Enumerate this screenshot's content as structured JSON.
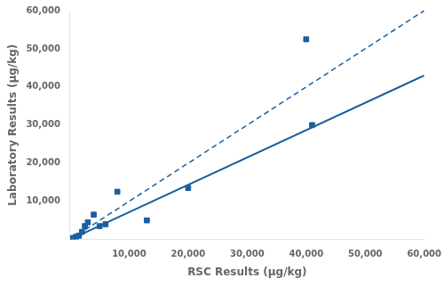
{
  "chart_data": {
    "type": "scatter",
    "xlabel": "RSC Results (μg/kg)",
    "ylabel": "Laboratory Results (μg/kg)",
    "series": [
      {
        "type": "scatter",
        "x": [
          500,
          1000,
          1500,
          2000,
          2500,
          3000,
          4000,
          5000,
          6000,
          8000,
          13000,
          20000,
          40000,
          41000
        ],
        "values": [
          400,
          700,
          1000,
          2000,
          3500,
          4500,
          6500,
          3500,
          4000,
          12500,
          5000,
          13500,
          52500,
          30000
        ],
        "color": "#1A5F9E",
        "marker": "square"
      },
      {
        "type": "line",
        "x": [
          0,
          60000
        ],
        "values": [
          0,
          60000
        ],
        "color": "#1A5F9E",
        "line_style": "dashed"
      },
      {
        "type": "line",
        "x": [
          0,
          60000
        ],
        "values": [
          0,
          43000
        ],
        "color": "#1A5F9E",
        "line_style": "solid"
      }
    ],
    "xlim": [
      0,
      60000
    ],
    "ylim": [
      0,
      60000
    ],
    "xticks": [
      {
        "value": 10000,
        "label": "10,000"
      },
      {
        "value": 20000,
        "label": "20,000"
      },
      {
        "value": 30000,
        "label": "30,000"
      },
      {
        "value": 40000,
        "label": "40,000"
      },
      {
        "value": 50000,
        "label": "50,000"
      },
      {
        "value": 60000,
        "label": "60,000"
      }
    ],
    "yticks": [
      {
        "value": 10000,
        "label": "10,000"
      },
      {
        "value": 20000,
        "label": "20,000"
      },
      {
        "value": 30000,
        "label": "30,000"
      },
      {
        "value": 40000,
        "label": "40,000"
      },
      {
        "value": 50000,
        "label": "50,000"
      },
      {
        "value": 60000,
        "label": "60,000"
      }
    ],
    "grid": false
  }
}
